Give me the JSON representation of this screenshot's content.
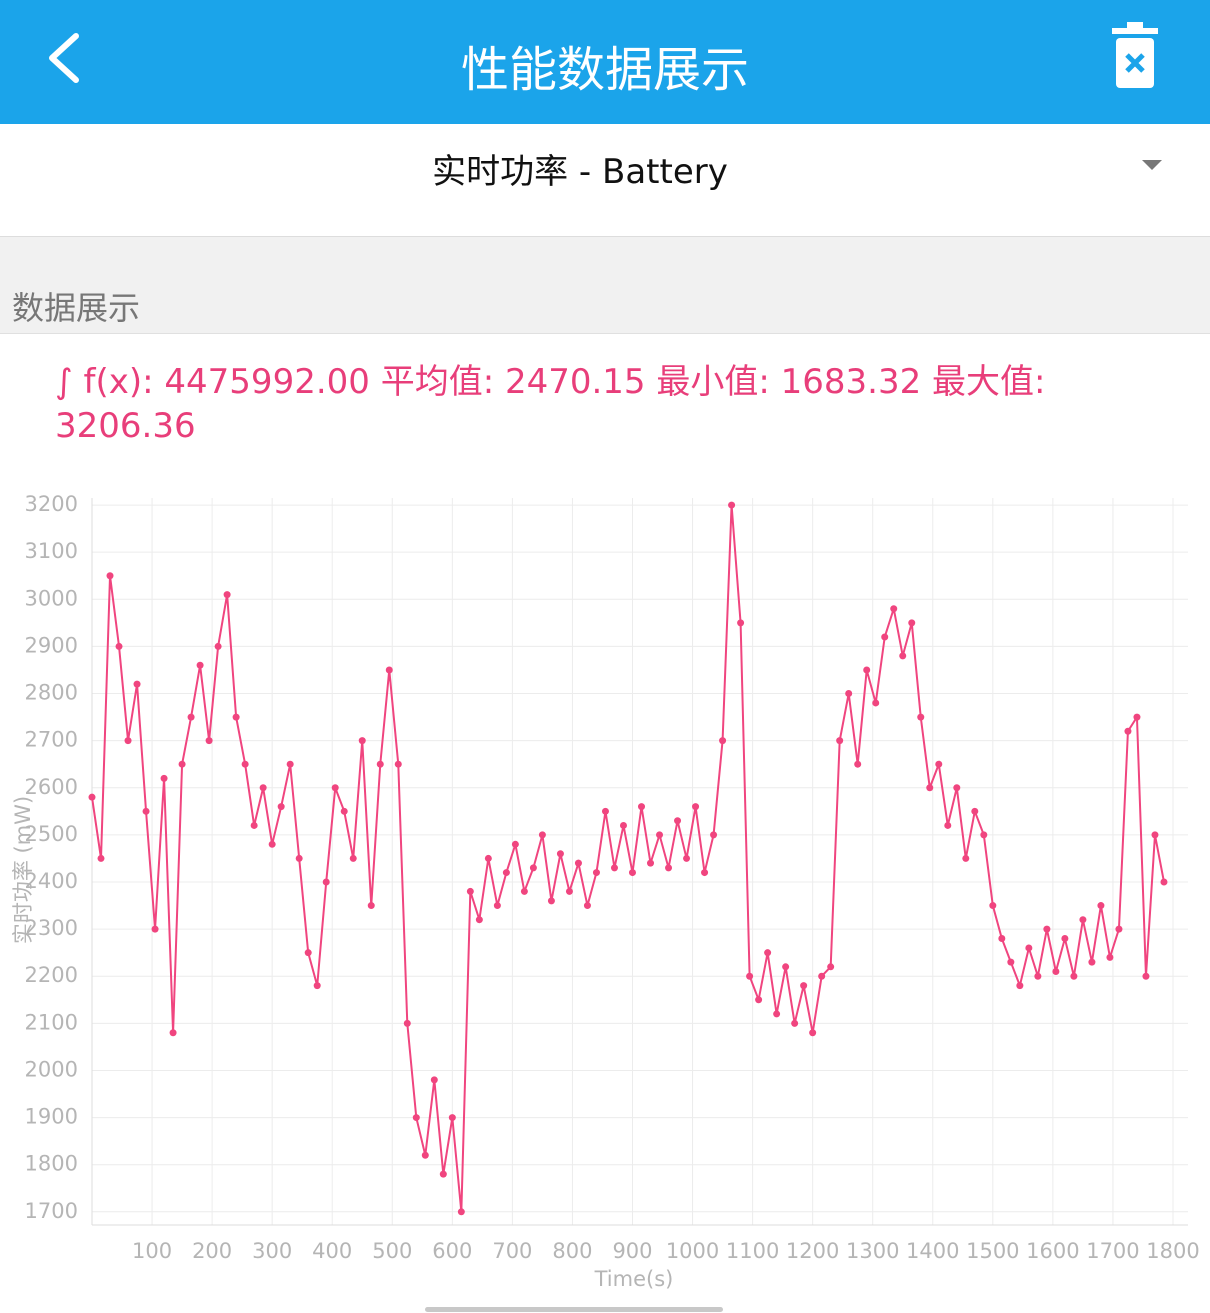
{
  "header": {
    "title": "性能数据展示"
  },
  "selector": {
    "label": "实时功率 - Battery"
  },
  "section": {
    "title": "数据展示"
  },
  "stats": {
    "text": "∫ f(x): 4475992.00 平均值: 2470.15 最小值: 1683.32 最大值: 3206.36"
  },
  "chart_data": {
    "type": "line",
    "x_label": "Time(s)",
    "y_label": "实时功率 (mW)",
    "color": "#f0457f",
    "grid": true,
    "x": [
      0,
      15,
      30,
      45,
      60,
      75,
      90,
      105,
      120,
      135,
      150,
      165,
      180,
      195,
      210,
      225,
      240,
      255,
      270,
      285,
      300,
      315,
      330,
      345,
      360,
      375,
      390,
      405,
      420,
      435,
      450,
      465,
      480,
      495,
      510,
      525,
      540,
      555,
      570,
      585,
      600,
      615,
      630,
      645,
      660,
      675,
      690,
      705,
      720,
      735,
      750,
      765,
      780,
      795,
      810,
      825,
      840,
      855,
      870,
      885,
      900,
      915,
      930,
      945,
      960,
      975,
      990,
      1005,
      1020,
      1035,
      1050,
      1065,
      1080,
      1095,
      1110,
      1125,
      1140,
      1155,
      1170,
      1185,
      1200,
      1215,
      1230,
      1245,
      1260,
      1275,
      1290,
      1305,
      1320,
      1335,
      1350,
      1365,
      1380,
      1395,
      1410,
      1425,
      1440,
      1455,
      1470,
      1485,
      1500,
      1515,
      1530,
      1545,
      1560,
      1575,
      1590,
      1605,
      1620,
      1635,
      1650,
      1665,
      1680,
      1695,
      1710,
      1725,
      1740,
      1755,
      1770,
      1785
    ],
    "values": [
      2580,
      2450,
      3050,
      2900,
      2700,
      2820,
      2550,
      2300,
      2620,
      2080,
      2650,
      2750,
      2860,
      2700,
      2900,
      3010,
      2750,
      2650,
      2520,
      2600,
      2480,
      2560,
      2650,
      2450,
      2250,
      2180,
      2400,
      2600,
      2550,
      2450,
      2700,
      2350,
      2650,
      2850,
      2650,
      2100,
      1900,
      1820,
      1980,
      1780,
      1900,
      1700,
      2380,
      2320,
      2450,
      2350,
      2420,
      2480,
      2380,
      2430,
      2500,
      2360,
      2460,
      2380,
      2440,
      2350,
      2420,
      2550,
      2430,
      2520,
      2420,
      2560,
      2440,
      2500,
      2430,
      2530,
      2450,
      2560,
      2420,
      2500,
      2700,
      3200,
      2950,
      2200,
      2150,
      2250,
      2120,
      2220,
      2100,
      2180,
      2080,
      2200,
      2220,
      2700,
      2800,
      2650,
      2850,
      2780,
      2920,
      2980,
      2880,
      2950,
      2750,
      2600,
      2650,
      2520,
      2600,
      2450,
      2550,
      2500,
      2350,
      2280,
      2230,
      2180,
      2260,
      2200,
      2300,
      2210,
      2280,
      2200,
      2320,
      2230,
      2350,
      2240,
      2300,
      2720,
      2750,
      2200,
      2500,
      2400
    ],
    "xlim": [
      0,
      1825
    ],
    "ylim": [
      1672,
      3215
    ],
    "xticks": [
      100,
      200,
      300,
      400,
      500,
      600,
      700,
      800,
      900,
      1000,
      1100,
      1200,
      1300,
      1400,
      1500,
      1600,
      1700,
      1800
    ],
    "yticks": [
      1700,
      1800,
      1900,
      2000,
      2100,
      2200,
      2300,
      2400,
      2500,
      2600,
      2700,
      2800,
      2900,
      3000,
      3100,
      3200
    ]
  }
}
